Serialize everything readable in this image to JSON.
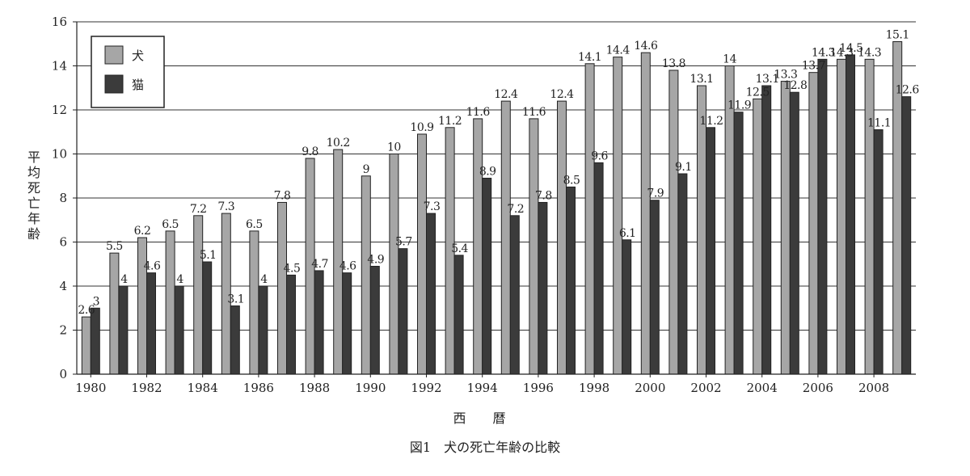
{
  "chart_data": {
    "type": "bar",
    "ylabel": "平均死亡年齢",
    "xlabel": "西 暦",
    "caption": "図1　犬の死亡年齢の比較",
    "ylim": [
      0,
      16
    ],
    "yticks": [
      0,
      2,
      4,
      6,
      8,
      10,
      12,
      14,
      16
    ],
    "grid": true,
    "legend_position": "top-left",
    "categories": [
      "1980",
      "1981",
      "1982",
      "1983",
      "1984",
      "1985",
      "1986",
      "1987",
      "1988",
      "1989",
      "1990",
      "1991",
      "1992",
      "1993",
      "1994",
      "1995",
      "1996",
      "1997",
      "1998",
      "1999",
      "2000",
      "2001",
      "2002",
      "2003",
      "2004",
      "2005",
      "2006",
      "2007",
      "2008",
      "2009"
    ],
    "xtick_labels": [
      "1980",
      "1982",
      "1984",
      "1986",
      "1988",
      "1990",
      "1992",
      "1994",
      "1996",
      "1998",
      "2000",
      "2002",
      "2004",
      "2006",
      "2008"
    ],
    "series": [
      {
        "name": "犬",
        "color": "#a6a6a6",
        "values": [
          2.6,
          5.5,
          6.2,
          6.5,
          7.2,
          7.3,
          6.5,
          7.8,
          9.8,
          10.2,
          9,
          10,
          10.9,
          11.2,
          11.6,
          12.4,
          11.6,
          12.4,
          14.1,
          14.4,
          14.6,
          13.8,
          13.1,
          14,
          12.5,
          13.3,
          13.7,
          14.3,
          14.3,
          15.1
        ],
        "labels": [
          "2.6",
          "5.5",
          "6.2",
          "6.5",
          "7.2",
          "7.3",
          "6.5",
          "7.8",
          "9.8",
          "10.2",
          "9",
          "10",
          "10.9",
          "11.2",
          "11.6",
          "12.4",
          "11.6",
          "12.4",
          "14.1",
          "14.4",
          "14.6",
          "13.8",
          "13.1",
          "14",
          "12.5",
          "13.3",
          "13.7",
          "14.3",
          "14.3",
          "15.1"
        ]
      },
      {
        "name": "猫",
        "color": "#3b3b3b",
        "values": [
          3,
          4,
          4.6,
          4,
          5.1,
          3.1,
          4,
          4.5,
          4.7,
          4.6,
          4.9,
          5.7,
          7.3,
          5.4,
          8.9,
          7.2,
          7.8,
          8.5,
          9.6,
          6.1,
          7.9,
          9.1,
          11.2,
          11.9,
          13.1,
          12.8,
          14.3,
          14.5,
          11.1,
          12.6
        ],
        "labels": [
          "3",
          "4",
          "4.6",
          "4",
          "5.1",
          "3.1",
          "4",
          "4.5",
          "4.7",
          "4.6",
          "4.9",
          "5.7",
          "7.3",
          "5.4",
          "8.9",
          "7.2",
          "7.8",
          "8.5",
          "9.6",
          "6.1",
          "7.9",
          "9.1",
          "11.2",
          "11.9",
          "13.1",
          "12.8",
          "14.3",
          "14.5",
          "11.1",
          "12.6"
        ]
      }
    ]
  }
}
